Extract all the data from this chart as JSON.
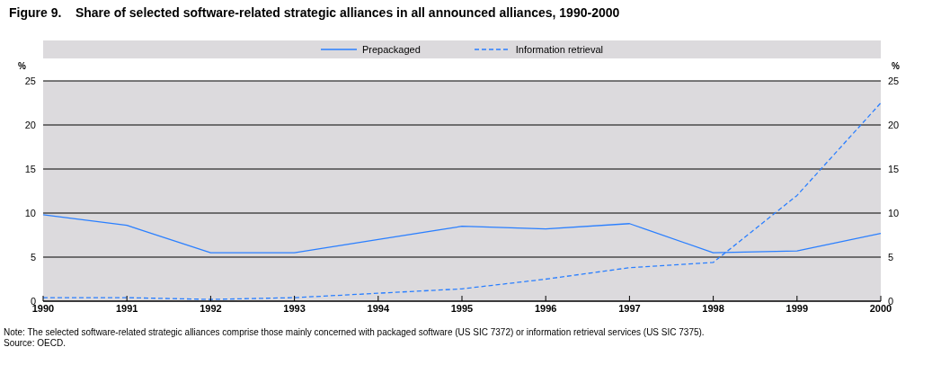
{
  "chart_data": {
    "type": "line",
    "title": "Figure 9.    Share of selected software-related strategic alliances in all announced alliances, 1990-2000",
    "ylabel": "%",
    "y2label": "%",
    "x": [
      1990,
      1991,
      1992,
      1993,
      1994,
      1995,
      1996,
      1997,
      1998,
      1999,
      2000
    ],
    "series": [
      {
        "name": "Prepackaged",
        "color": "#2a7fff",
        "line_style": "solid",
        "values": [
          9.8,
          8.6,
          5.5,
          5.5,
          7.0,
          8.5,
          8.2,
          8.8,
          5.5,
          5.7,
          7.7
        ]
      },
      {
        "name": "Information retrieval",
        "color": "#2a7fff",
        "line_style": "dashed",
        "values": [
          0.4,
          0.4,
          0.2,
          0.4,
          0.9,
          1.4,
          2.5,
          3.8,
          4.4,
          12,
          22.5
        ]
      }
    ],
    "xlim": [
      1990,
      2000
    ],
    "xticks": [
      1990,
      1991,
      1992,
      1993,
      1994,
      1995,
      1996,
      1997,
      1998,
      1999,
      2000
    ],
    "ylim": [
      0,
      25
    ],
    "yticks": [
      0,
      5,
      10,
      15,
      20,
      25
    ],
    "y2lim": [
      0,
      25
    ],
    "y2ticks": [
      0,
      5,
      10,
      15,
      20,
      25
    ],
    "grid": "y",
    "legend": "top",
    "marker": "none",
    "annotations": [
      "Note:   The selected software-related strategic alliances comprise those mainly concerned with packaged software (US SIC 7372) or information retrieval services (US SIC 7375).",
      "Source:   OECD."
    ]
  }
}
